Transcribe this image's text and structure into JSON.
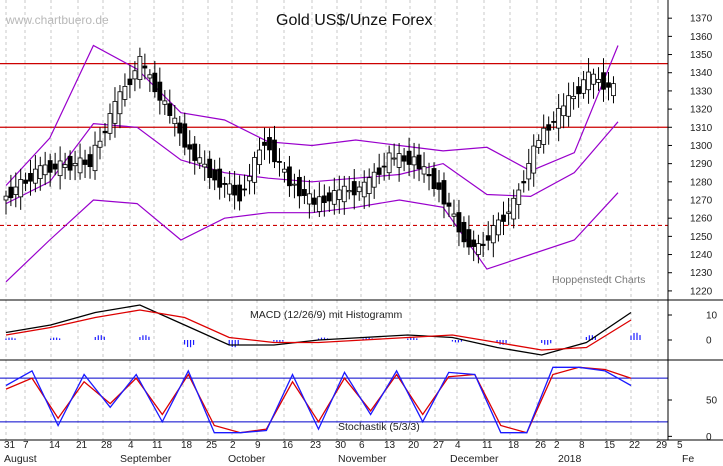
{
  "watermark": "www.chartbuero.de",
  "chart_data": [
    {
      "panel": "price",
      "type": "candlestick",
      "title": "Gold US$/Unze Forex",
      "credit": "Hoppenstedt Charts",
      "ylim": [
        1215,
        1380
      ],
      "yticks": [
        1220,
        1230,
        1240,
        1250,
        1260,
        1270,
        1280,
        1290,
        1300,
        1310,
        1320,
        1330,
        1340,
        1350,
        1360,
        1370
      ],
      "horizontal_lines": [
        {
          "value": 1345,
          "style": "solid",
          "color": "#cc0000"
        },
        {
          "value": 1310,
          "style": "solid",
          "color": "#cc0000"
        },
        {
          "value": 1256,
          "style": "dashed",
          "color": "#cc0000"
        }
      ],
      "key_points": [
        {
          "date": "2017-07-31",
          "close": 1270
        },
        {
          "date": "2017-08-11",
          "close": 1287
        },
        {
          "date": "2017-08-25",
          "close": 1291
        },
        {
          "date": "2017-09-01",
          "close": 1322
        },
        {
          "date": "2017-09-08",
          "close": 1346
        },
        {
          "date": "2017-09-15",
          "close": 1322
        },
        {
          "date": "2017-09-22",
          "close": 1297
        },
        {
          "date": "2017-09-29",
          "close": 1282
        },
        {
          "date": "2017-10-06",
          "close": 1272
        },
        {
          "date": "2017-10-13",
          "close": 1303
        },
        {
          "date": "2017-10-20",
          "close": 1280
        },
        {
          "date": "2017-10-27",
          "close": 1268
        },
        {
          "date": "2017-11-03",
          "close": 1274
        },
        {
          "date": "2017-11-10",
          "close": 1277
        },
        {
          "date": "2017-11-17",
          "close": 1293
        },
        {
          "date": "2017-11-24",
          "close": 1292
        },
        {
          "date": "2017-12-01",
          "close": 1276
        },
        {
          "date": "2017-12-08",
          "close": 1249
        },
        {
          "date": "2017-12-12",
          "close": 1243
        },
        {
          "date": "2017-12-22",
          "close": 1268
        },
        {
          "date": "2017-12-29",
          "close": 1304
        },
        {
          "date": "2018-01-05",
          "close": 1321
        },
        {
          "date": "2018-01-12",
          "close": 1338
        },
        {
          "date": "2018-01-19",
          "close": 1331
        }
      ],
      "bollinger": {
        "upper": [
          1278,
          1304,
          1355,
          1342,
          1318,
          1314,
          1302,
          1300,
          1303,
          1300,
          1297,
          1299,
          1286,
          1296,
          1355
        ],
        "middle": [
          1268,
          1280,
          1312,
          1310,
          1292,
          1285,
          1282,
          1280,
          1282,
          1284,
          1290,
          1273,
          1272,
          1285,
          1313
        ],
        "lower": [
          1225,
          1248,
          1270,
          1268,
          1248,
          1260,
          1263,
          1263,
          1266,
          1270,
          1266,
          1232,
          1240,
          1248,
          1274
        ]
      }
    },
    {
      "panel": "macd",
      "type": "line+bar",
      "label": "MACD (12/26/9) mit Histogramm",
      "ylim": [
        -8,
        16
      ],
      "yticks": [
        0,
        10
      ],
      "macd": [
        3,
        6,
        11,
        14,
        6,
        -2,
        -2,
        0,
        1,
        2,
        1,
        -3,
        -6,
        -1,
        11
      ],
      "signal": [
        2,
        5,
        9,
        12,
        9,
        1,
        -1,
        -1,
        0,
        1,
        2,
        -1,
        -4,
        -3,
        8
      ],
      "histogram": [
        1,
        1,
        2,
        2,
        -3,
        -3,
        -1,
        1,
        1,
        1,
        -1,
        -2,
        -2,
        2,
        3
      ]
    },
    {
      "panel": "stochastic",
      "type": "line",
      "label": "Stochastik (5/3/3)",
      "ylim": [
        -5,
        105
      ],
      "yticks": [
        0,
        50
      ],
      "reference_lines": [
        20,
        80
      ],
      "k": [
        70,
        90,
        15,
        85,
        40,
        85,
        20,
        90,
        5,
        5,
        8,
        85,
        10,
        88,
        30,
        90,
        20,
        88,
        85,
        5,
        5,
        95,
        95,
        90,
        70
      ],
      "d": [
        65,
        80,
        25,
        75,
        45,
        80,
        30,
        85,
        15,
        5,
        10,
        75,
        20,
        80,
        35,
        85,
        30,
        82,
        85,
        15,
        5,
        85,
        95,
        92,
        80
      ]
    }
  ],
  "x_axis": {
    "day_labels": [
      "31",
      "7",
      "14",
      "21",
      "28",
      "4",
      "11",
      "18",
      "25",
      "2",
      "9",
      "16",
      "23",
      "30",
      "6",
      "13",
      "20",
      "27",
      "4",
      "11",
      "18",
      "26",
      "2",
      "8",
      "15",
      "22",
      "29",
      "5"
    ],
    "months": [
      "August",
      "September",
      "October",
      "November",
      "December",
      "2018",
      "Fe"
    ]
  }
}
